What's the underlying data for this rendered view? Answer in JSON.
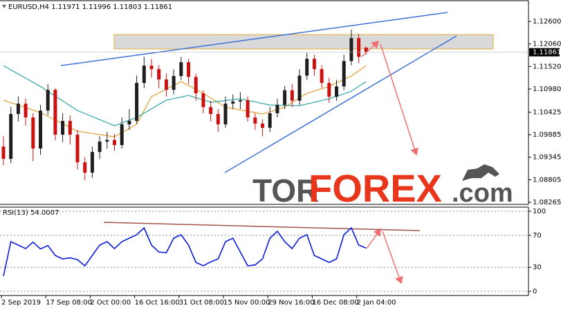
{
  "chart_data": [
    {
      "type": "candlestick",
      "title": "EURUSD,H4 1.11971 1.11996 1.11803 1.11861",
      "ylim": [
        1.08265,
        1.1308
      ],
      "yticks": [
        {
          "value": 1.126,
          "label": "1.12600"
        },
        {
          "value": 1.1206,
          "label": "1.12060"
        },
        {
          "value": 1.1152,
          "label": "1.11520"
        },
        {
          "value": 1.1098,
          "label": "1.10980"
        },
        1.10425,
        1.09885,
        1.09345,
        1.08805,
        1.08265
      ],
      "last_price": 1.11861,
      "up_color": "#1e1e1e",
      "down_color": "#cc1111",
      "open": [
        1.096,
        1.09306,
        1.10381,
        1.10629,
        1.10298,
        1.09554,
        1.10464,
        1.1096,
        1.09885,
        1.10215,
        1.09885,
        1.09223,
        1.08975,
        1.09471,
        1.09719,
        1.0976,
        1.09637,
        1.10133,
        1.10215,
        1.11125,
        1.11539,
        1.11456,
        1.11208,
        1.1096,
        1.11291,
        1.11621,
        1.1127,
        1.10877,
        1.10546,
        1.10381,
        1.10133,
        1.10629,
        1.1068,
        1.10712,
        1.10298,
        1.1015,
        1.1005,
        1.104,
        1.106,
        1.1095,
        1.107,
        1.113,
        1.11704,
        1.11456,
        1.11125,
        1.10794,
        1.11042,
        1.1165,
        1.122,
        1.11971
      ],
      "high": [
        1.0985,
        1.1055,
        1.108,
        1.1075,
        1.104,
        1.106,
        1.111,
        1.11,
        1.104,
        1.1035,
        1.1,
        1.0935,
        1.096,
        1.0985,
        1.0995,
        1.099,
        1.103,
        1.105,
        1.113,
        1.1175,
        1.117,
        1.1155,
        1.1135,
        1.1145,
        1.1175,
        1.117,
        1.1135,
        1.1095,
        1.107,
        1.105,
        1.108,
        1.1085,
        1.109,
        1.108,
        1.104,
        1.1025,
        1.1055,
        1.1075,
        1.1105,
        1.111,
        1.1145,
        1.1185,
        1.118,
        1.1155,
        1.1125,
        1.112,
        1.118,
        1.124,
        1.123,
        1.11996
      ],
      "low": [
        1.0915,
        1.092,
        1.102,
        1.101,
        1.0925,
        1.094,
        1.1035,
        1.0975,
        1.097,
        1.0965,
        1.0905,
        1.0879,
        1.0885,
        1.093,
        1.0955,
        1.095,
        1.0955,
        1.1,
        1.1015,
        1.11,
        1.1125,
        1.11,
        1.108,
        1.1085,
        1.112,
        1.111,
        1.107,
        1.104,
        1.102,
        1.0995,
        1.1005,
        1.105,
        1.105,
        1.102,
        1.1,
        1.0985,
        1.0995,
        1.103,
        1.105,
        1.1055,
        1.106,
        1.112,
        1.113,
        1.11,
        1.1065,
        1.107,
        1.1095,
        1.1155,
        1.116,
        1.11803
      ],
      "close": [
        1.09306,
        1.10381,
        1.10629,
        1.10298,
        1.09554,
        1.10464,
        1.1096,
        1.09885,
        1.10215,
        1.09885,
        1.09223,
        1.08975,
        1.09471,
        1.09719,
        1.0976,
        1.09637,
        1.10133,
        1.10215,
        1.11125,
        1.11539,
        1.11456,
        1.11208,
        1.1096,
        1.11291,
        1.11621,
        1.1127,
        1.10877,
        1.10546,
        1.10381,
        1.10133,
        1.10629,
        1.1068,
        1.10712,
        1.10298,
        1.1015,
        1.1005,
        1.104,
        1.106,
        1.1095,
        1.107,
        1.113,
        1.11704,
        1.11456,
        1.11125,
        1.10794,
        1.11042,
        1.1165,
        1.122,
        1.1175,
        1.11861
      ],
      "moving_averages": [
        {
          "color": "#e0a030",
          "values": [
            1.10712,
            1.10652,
            1.10593,
            1.10533,
            1.10474,
            1.10414,
            1.10325,
            1.10235,
            1.10146,
            1.10056,
            1.09967,
            1.09941,
            1.09914,
            1.09888,
            1.09861,
            1.09835,
            1.09934,
            1.10034,
            1.10133,
            1.10464,
            1.10795,
            1.10886,
            1.10977,
            1.11067,
            1.11158,
            1.11064,
            1.10971,
            1.10877,
            1.10767,
            1.10656,
            1.10546,
            1.10513,
            1.1048,
            1.10447,
            1.10414,
            1.10381,
            1.10436,
            1.10491,
            1.10546,
            1.10656,
            1.10767,
            1.10877,
            1.10932,
            1.10987,
            1.11042,
            1.11125,
            1.11208,
            1.11291,
            1.11415,
            1.11539
          ]
        },
        {
          "color": "#2aa6a6",
          "values": [
            1.11539,
            1.1144,
            1.1134,
            1.11241,
            1.11141,
            1.11042,
            1.10926,
            1.10811,
            1.10695,
            1.1058,
            1.10464,
            1.10391,
            1.10318,
            1.10246,
            1.10173,
            1.101,
            1.10166,
            1.10232,
            1.10298,
            1.10402,
            1.10505,
            1.10609,
            1.10712,
            1.1075,
            1.10789,
            1.10827,
            1.10772,
            1.10717,
            1.10662,
            1.10683,
            1.10704,
            1.10724,
            1.10745,
            1.10708,
            1.10671,
            1.10633,
            1.10596,
            1.10592,
            1.10588,
            1.10583,
            1.10579,
            1.10621,
            1.10662,
            1.10704,
            1.10745,
            1.10806,
            1.10866,
            1.10927,
            1.11043,
            1.11158
          ]
        }
      ],
      "watermark": {
        "tor": "TOR",
        "forex": "FOREX",
        "com": ".com"
      }
    },
    {
      "type": "line",
      "title": "RSI(13) 54.0007",
      "ylim": [
        0,
        100
      ],
      "yticks": [
        0,
        30,
        70,
        100
      ],
      "grid": true,
      "color": "#0a1adc",
      "categories": [
        "2 Sep 2019",
        null,
        null,
        null,
        null,
        null,
        "17 Sep 08:00",
        null,
        null,
        null,
        null,
        null,
        "2 Oct 00:00",
        null,
        null,
        null,
        null,
        null,
        "16 Oct 16:00",
        null,
        null,
        null,
        null,
        null,
        "31 Oct 08:00",
        null,
        null,
        null,
        null,
        null,
        "15 Nov 00:00",
        null,
        null,
        null,
        null,
        null,
        "29 Nov 16:00",
        null,
        null,
        null,
        null,
        null,
        "16 Dec 08:00",
        null,
        null,
        null,
        null,
        null,
        "2 Jan 04:00",
        null
      ],
      "values": [
        19.0,
        62.1,
        57.8,
        53.4,
        61.5,
        52.9,
        57.2,
        44.8,
        40.5,
        41.8,
        39.6,
        31.9,
        44.8,
        57.8,
        62.1,
        53.4,
        62.1,
        66.4,
        70.7,
        79.3,
        57.8,
        49.1,
        48.3,
        66.4,
        70.7,
        57.8,
        36.2,
        31.9,
        36.9,
        40.5,
        62.1,
        66.4,
        49.1,
        31.9,
        33.0,
        40.5,
        66.4,
        75.0,
        62.1,
        53.4,
        66.4,
        70.7,
        44.8,
        40.5,
        36.2,
        40.5,
        70.7,
        79.3,
        57.8,
        54.0007
      ]
    }
  ]
}
